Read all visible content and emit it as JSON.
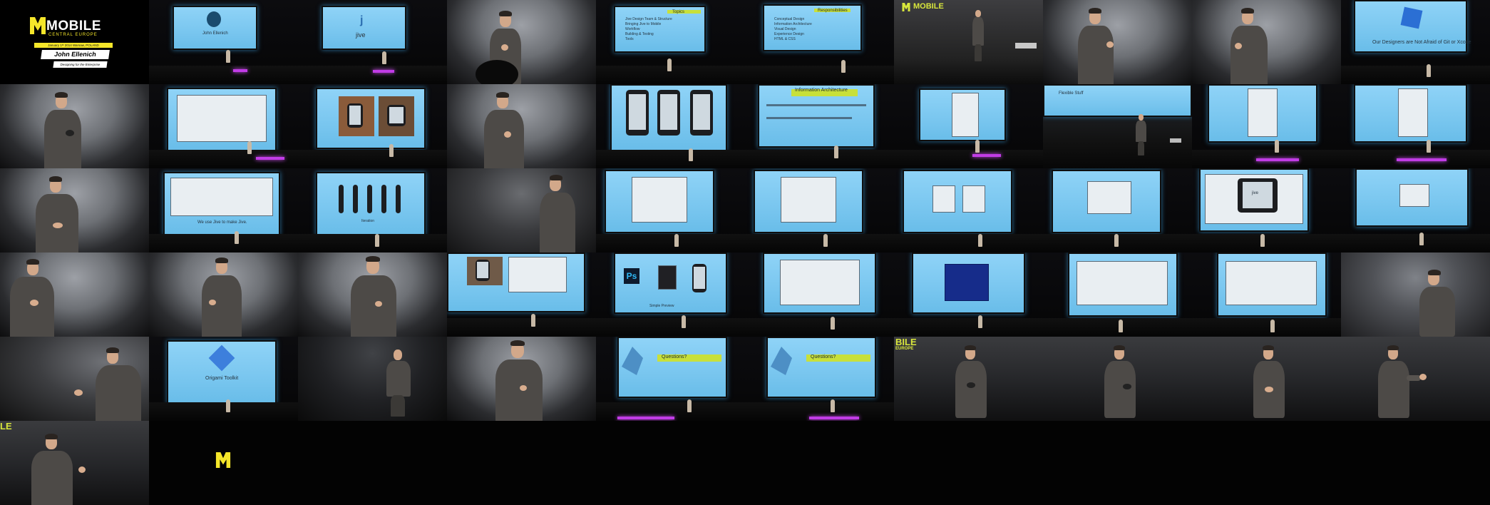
{
  "title_card": {
    "brand": "MOBILE",
    "brand_sub": "CENTRAL EUROPE",
    "date_line": "January 1ˢᵗ 2014  Warsaw, POLAND",
    "speaker_name": "John Ellenich",
    "talk_topic": "Designing for the Enterprise"
  },
  "slides": {
    "intro_caption": "John Ellenich",
    "jive_logo": "j",
    "jive_word": "jive",
    "topics_title": "Topics",
    "topics_items": [
      "Jive Design Team & Structure",
      "Bringing Jive to Mobile",
      "Workflow",
      "Building & Testing",
      "Tools"
    ],
    "responsibilities_title": "Responsibilities",
    "responsibilities_items": [
      "Conceptual Design",
      "Information Architecture",
      "Visual Design",
      "Experience Design",
      "HTML & CSS"
    ],
    "designers_caption": "Our Designers are Not Afraid of Git or Xcode",
    "ia_title": "Information Architecture",
    "flexible_stuff": "Flexible Stuff",
    "we_use_jive": "We use Jive to make Jive.",
    "iteration_caption": "Iteration",
    "jive_small": "jive",
    "simple_preview": "Simple Preview",
    "origami_caption": "Origami Toolkit",
    "questions": "Questions?",
    "stage_banner_1": "MOBILE",
    "stage_banner_2": "BILE",
    "stage_banner_3": "EUROPE",
    "stage_banner_4": "LE"
  }
}
